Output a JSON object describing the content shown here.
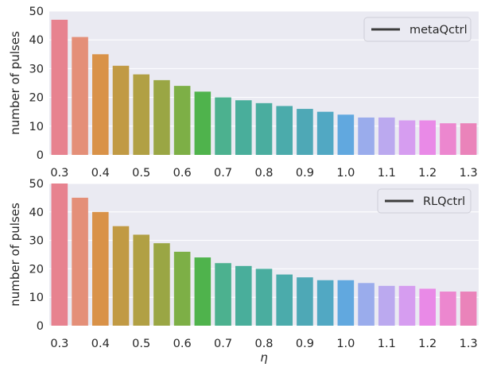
{
  "chart_data": [
    {
      "type": "bar",
      "categories": [
        "0.3",
        "0.35",
        "0.4",
        "0.45",
        "0.5",
        "0.55",
        "0.6",
        "0.65",
        "0.7",
        "0.75",
        "0.8",
        "0.85",
        "0.9",
        "0.95",
        "1.0",
        "1.05",
        "1.1",
        "1.15",
        "1.2",
        "1.25",
        "1.3"
      ],
      "tick_labels": [
        "0.3",
        "0.4",
        "0.5",
        "0.6",
        "0.7",
        "0.8",
        "0.9",
        "1.0",
        "1.1",
        "1.2",
        "1.3"
      ],
      "values": [
        47,
        41,
        35,
        31,
        28,
        26,
        24,
        22,
        20,
        19,
        18,
        17,
        16,
        15,
        14,
        13,
        13,
        12,
        12,
        11,
        11
      ],
      "ylabel": "number of pulses",
      "xlabel": "",
      "ylim": [
        0,
        50
      ],
      "yticks": [
        "0",
        "10",
        "20",
        "30",
        "40",
        "50"
      ],
      "legend": "metaQctrl",
      "legend_position": "top-right",
      "grid": true
    },
    {
      "type": "bar",
      "categories": [
        "0.3",
        "0.35",
        "0.4",
        "0.45",
        "0.5",
        "0.55",
        "0.6",
        "0.65",
        "0.7",
        "0.75",
        "0.8",
        "0.85",
        "0.9",
        "0.95",
        "1.0",
        "1.05",
        "1.1",
        "1.15",
        "1.2",
        "1.25",
        "1.3"
      ],
      "tick_labels": [
        "0.3",
        "0.4",
        "0.5",
        "0.6",
        "0.7",
        "0.8",
        "0.9",
        "1.0",
        "1.1",
        "1.2",
        "1.3"
      ],
      "values": [
        50,
        45,
        40,
        35,
        32,
        29,
        26,
        24,
        22,
        21,
        20,
        18,
        17,
        16,
        16,
        15,
        14,
        14,
        13,
        12,
        12
      ],
      "ylabel": "number of pulses",
      "xlabel": "η",
      "ylim": [
        0,
        50
      ],
      "yticks": [
        "0",
        "10",
        "20",
        "30",
        "40",
        "50"
      ],
      "legend": "RLQctrl",
      "legend_position": "top-right",
      "grid": true
    }
  ],
  "colors": {
    "panel_background": "#eaeaf2",
    "grid": "#ffffff",
    "legend_line": "#3d3d3d",
    "bars": [
      "#e7828f",
      "#e48f78",
      "#d99248",
      "#c19a44",
      "#b1a044",
      "#9aa644",
      "#7daf46",
      "#4fb34c",
      "#4cb18f",
      "#49ae9b",
      "#4aad9f",
      "#4babab",
      "#4ea8b6",
      "#51a8c3",
      "#61a8df",
      "#9aacec",
      "#bba9ef",
      "#d69df0",
      "#e98ae7",
      "#ec87cf",
      "#ea83ba"
    ]
  }
}
